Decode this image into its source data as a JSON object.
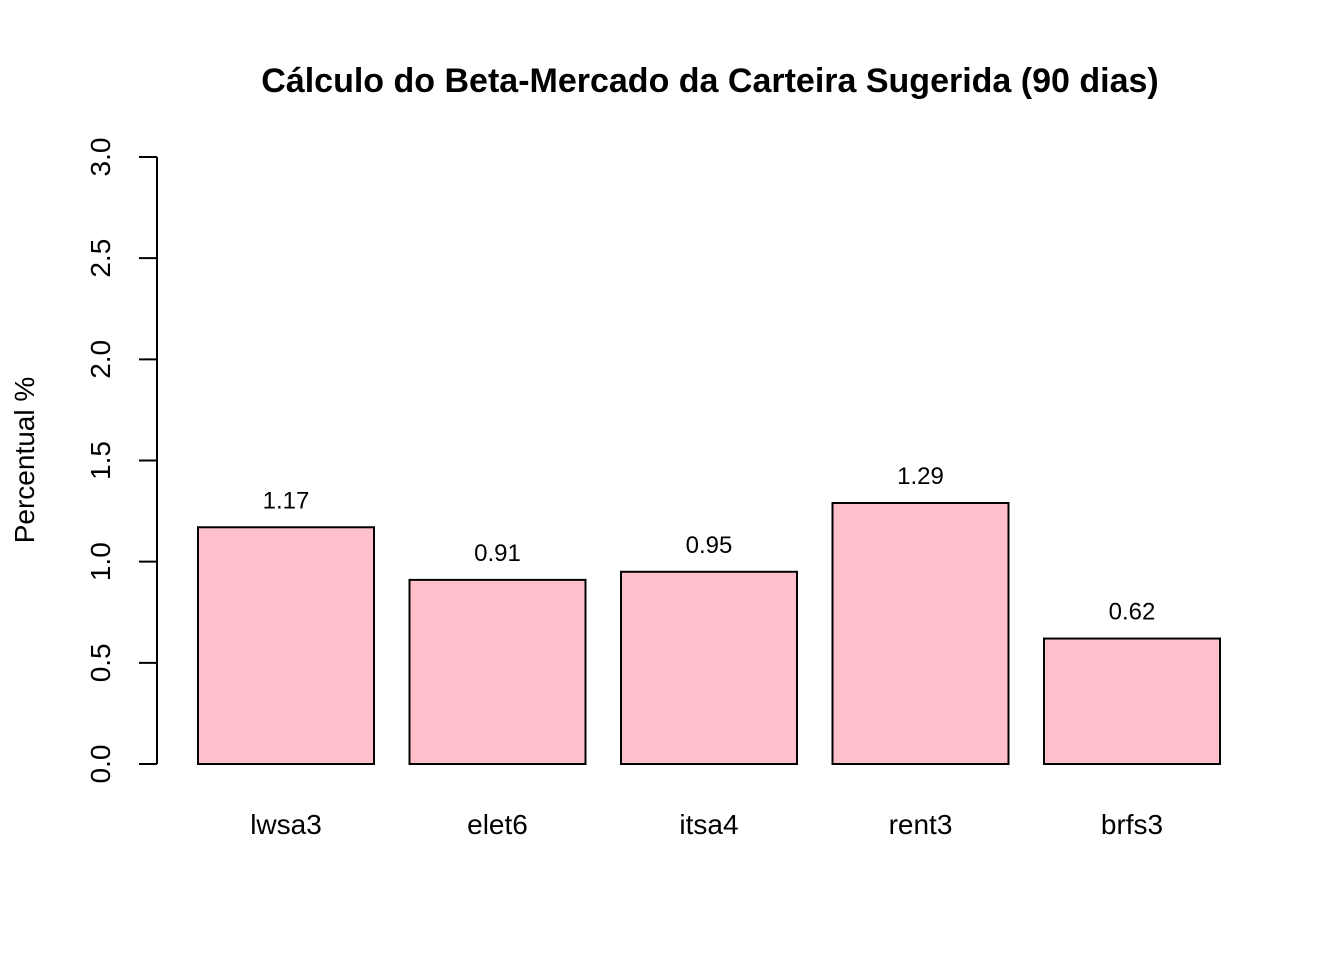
{
  "chart_data": {
    "type": "bar",
    "title": "Cálculo do Beta-Mercado da Carteira Sugerida (90 dias)",
    "xlabel": "",
    "ylabel": "Percentual %",
    "categories": [
      "lwsa3",
      "elet6",
      "itsa4",
      "rent3",
      "brfs3"
    ],
    "values": [
      1.17,
      0.91,
      0.95,
      1.29,
      0.62
    ],
    "value_labels": [
      "1.17",
      "0.91",
      "0.95",
      "1.29",
      "0.62"
    ],
    "ylim": [
      0,
      3
    ],
    "yticks": [
      0.0,
      0.5,
      1.0,
      1.5,
      2.0,
      2.5,
      3.0
    ],
    "ytick_labels": [
      "0.0",
      "0.5",
      "1.0",
      "1.5",
      "2.0",
      "2.5",
      "3.0"
    ],
    "bar_color": "#ffc0cb",
    "bar_border_color": "#000000",
    "grid": false,
    "legend": "none"
  }
}
